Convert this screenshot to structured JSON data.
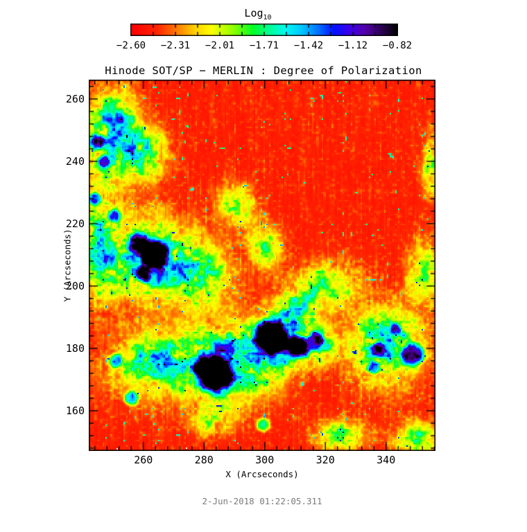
{
  "figure": {
    "background": "#ffffff",
    "text_color": "#000000",
    "caption_color": "#7b7b7b"
  },
  "chart_data": {
    "type": "heatmap",
    "title": "Hinode SOT/SP − MERLIN : Degree of Polarization",
    "xlabel": "X (Arcseconds)",
    "ylabel": "Y (Arcseconds)",
    "caption": "2-Jun-2018 01:22:05.311",
    "xrange": [
      242.0,
      356.3
    ],
    "yrange": [
      147.1,
      266.2
    ],
    "x_ticks": [
      260,
      280,
      300,
      320,
      340
    ],
    "y_ticks": [
      160,
      180,
      200,
      220,
      240,
      260
    ],
    "minor_tick_step": 4,
    "grid": false,
    "legend_position": "top-colorbar",
    "colorbar": {
      "title": "Log",
      "title_sub": "10",
      "range": [
        -2.6,
        -0.82
      ],
      "tick_labels": [
        "−2.60",
        "−2.31",
        "−2.01",
        "−1.71",
        "−1.42",
        "−1.12",
        "−0.82"
      ],
      "minor_divisions": 12,
      "stops": [
        [
          0.0,
          255,
          0,
          0
        ],
        [
          0.1,
          255,
          40,
          0
        ],
        [
          0.16,
          255,
          110,
          0
        ],
        [
          0.24,
          255,
          210,
          0
        ],
        [
          0.3,
          255,
          255,
          0
        ],
        [
          0.38,
          150,
          255,
          0
        ],
        [
          0.46,
          0,
          255,
          40
        ],
        [
          0.52,
          0,
          255,
          150
        ],
        [
          0.58,
          0,
          250,
          240
        ],
        [
          0.64,
          0,
          200,
          255
        ],
        [
          0.7,
          0,
          120,
          255
        ],
        [
          0.76,
          0,
          20,
          255
        ],
        [
          0.82,
          60,
          0,
          235
        ],
        [
          0.88,
          85,
          0,
          170
        ],
        [
          0.94,
          45,
          0,
          85
        ],
        [
          1.0,
          0,
          0,
          0
        ]
      ]
    },
    "field": {
      "description": "log10 degree of polarization: red background ~ -2.6, mottled green/cyan network ~ -1.9 to -1.5, dark blue/purple pores ~ -1.1 to -0.82",
      "seed": 42,
      "base_level": 0.05,
      "zones": [
        {
          "x": 250,
          "y": 249,
          "rx": 8,
          "ry": 12,
          "s": 0.8
        },
        {
          "x": 261,
          "y": 242,
          "rx": 7,
          "ry": 8,
          "s": 0.55
        },
        {
          "x": 246,
          "y": 214,
          "rx": 6,
          "ry": 18,
          "s": 0.6
        },
        {
          "x": 263,
          "y": 209,
          "rx": 13,
          "ry": 12,
          "s": 0.85
        },
        {
          "x": 280,
          "y": 203,
          "rx": 9,
          "ry": 9,
          "s": 0.5
        },
        {
          "x": 291,
          "y": 226,
          "rx": 6,
          "ry": 6,
          "s": 0.5
        },
        {
          "x": 300,
          "y": 213,
          "rx": 5,
          "ry": 7,
          "s": 0.45
        },
        {
          "x": 311,
          "y": 193,
          "rx": 7,
          "ry": 9,
          "s": 0.5
        },
        {
          "x": 318,
          "y": 181,
          "rx": 6,
          "ry": 6,
          "s": 0.5
        },
        {
          "x": 288,
          "y": 176,
          "rx": 16,
          "ry": 11,
          "s": 0.85
        },
        {
          "x": 305,
          "y": 183,
          "rx": 8,
          "ry": 8,
          "s": 0.7
        },
        {
          "x": 340,
          "y": 181,
          "rx": 11,
          "ry": 12,
          "s": 0.7
        },
        {
          "x": 353,
          "y": 205,
          "rx": 5,
          "ry": 10,
          "s": 0.45
        },
        {
          "x": 355,
          "y": 238,
          "rx": 3,
          "ry": 10,
          "s": 0.4
        },
        {
          "x": 350,
          "y": 151,
          "rx": 7,
          "ry": 5,
          "s": 0.5
        },
        {
          "x": 325,
          "y": 152,
          "rx": 8,
          "ry": 5,
          "s": 0.45
        },
        {
          "x": 322,
          "y": 201,
          "rx": 9,
          "ry": 7,
          "s": 0.4
        },
        {
          "x": 262,
          "y": 175,
          "rx": 13,
          "ry": 10,
          "s": 0.55
        },
        {
          "x": 283,
          "y": 157,
          "rx": 7,
          "ry": 5,
          "s": 0.4
        }
      ],
      "blobs": [
        {
          "x": 263.5,
          "y": 210.0,
          "r": 4.5,
          "s": 0.8
        },
        {
          "x": 258.5,
          "y": 213.5,
          "r": 3.5,
          "s": 0.55
        },
        {
          "x": 260.0,
          "y": 204.0,
          "r": 2.5,
          "s": 0.45
        },
        {
          "x": 284.0,
          "y": 171.5,
          "r": 5.5,
          "s": 0.9
        },
        {
          "x": 279.0,
          "y": 174.0,
          "r": 3.0,
          "s": 0.5
        },
        {
          "x": 302.0,
          "y": 183.5,
          "r": 5.0,
          "s": 0.85
        },
        {
          "x": 311.0,
          "y": 180.5,
          "r": 3.5,
          "s": 0.6
        },
        {
          "x": 349.0,
          "y": 178.0,
          "r": 3.5,
          "s": 0.65
        },
        {
          "x": 337.5,
          "y": 179.5,
          "r": 2.5,
          "s": 0.5
        },
        {
          "x": 244.5,
          "y": 246.0,
          "r": 2.5,
          "s": 0.5
        },
        {
          "x": 247.0,
          "y": 240.0,
          "r": 2.0,
          "s": 0.45
        },
        {
          "x": 244.0,
          "y": 228.0,
          "r": 2.0,
          "s": 0.45
        },
        {
          "x": 250.5,
          "y": 222.5,
          "r": 2.0,
          "s": 0.4
        },
        {
          "x": 317.0,
          "y": 183.0,
          "r": 2.5,
          "s": 0.45
        },
        {
          "x": 251.0,
          "y": 176.0,
          "r": 2.2,
          "s": 0.45
        },
        {
          "x": 256.0,
          "y": 164.0,
          "r": 2.3,
          "s": 0.45
        },
        {
          "x": 299.5,
          "y": 155.5,
          "r": 2.2,
          "s": 0.42
        },
        {
          "x": 336.0,
          "y": 174.0,
          "r": 2.0,
          "s": 0.4
        },
        {
          "x": 343.0,
          "y": 186.0,
          "r": 2.0,
          "s": 0.4
        }
      ],
      "hot_pixels": [
        [
          40,
          532
        ],
        [
          140,
          531
        ],
        [
          240,
          437
        ]
      ]
    }
  }
}
